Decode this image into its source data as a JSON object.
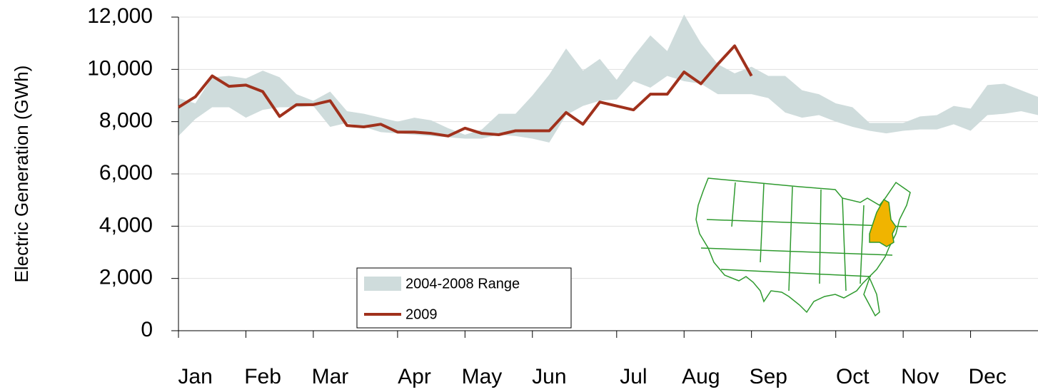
{
  "chart_data": {
    "type": "line",
    "y_label": "Electric Generation (GWh)",
    "categories": [
      null,
      "Jan",
      null,
      null,
      null,
      "Feb",
      null,
      null,
      null,
      "Mar",
      null,
      null,
      null,
      null,
      "Apr",
      null,
      null,
      null,
      "May",
      null,
      null,
      null,
      "Jun",
      null,
      null,
      null,
      null,
      "Jul",
      null,
      null,
      null,
      "Aug",
      null,
      null,
      null,
      "Sep",
      null,
      null,
      null,
      null,
      "Oct",
      null,
      null,
      null,
      "Nov",
      null,
      null,
      null,
      "Dec",
      null,
      null,
      null
    ],
    "series": [
      {
        "name": "2004-2008 Range",
        "color": "#cfdcdc",
        "low": [
          7450,
          8100,
          8550,
          8550,
          8150,
          8450,
          8550,
          8550,
          8600,
          7800,
          7950,
          7800,
          7600,
          7550,
          7500,
          7450,
          7400,
          7350,
          7350,
          7500,
          7450,
          7350,
          7200,
          8250,
          8600,
          8800,
          8850,
          9550,
          9300,
          9750,
          9550,
          9450,
          9050,
          9050,
          9050,
          8900,
          8350,
          8150,
          8250,
          8000,
          7800,
          7650,
          7550,
          7650,
          7700,
          7700,
          7900,
          7650,
          8250,
          8300,
          8400,
          8250
        ],
        "high": [
          8900,
          8700,
          9700,
          9750,
          9650,
          9950,
          9700,
          9050,
          8800,
          9150,
          8400,
          8300,
          8150,
          8000,
          8150,
          8050,
          7750,
          7500,
          7700,
          8300,
          8300,
          9000,
          9800,
          10800,
          9950,
          10400,
          9600,
          10500,
          11300,
          10700,
          12100,
          11000,
          10200,
          9850,
          10100,
          9750,
          9750,
          9200,
          9050,
          8700,
          8550,
          7950,
          7950,
          7950,
          8200,
          8250,
          8600,
          8500,
          9400,
          9450,
          9200,
          8950
        ]
      },
      {
        "name": "2009",
        "color": "#a0311c",
        "values": [
          8550,
          8950,
          9750,
          9350,
          9400,
          9150,
          8200,
          8650,
          8650,
          8800,
          7850,
          7800,
          7900,
          7600,
          7600,
          7550,
          7450,
          7750,
          7550,
          7500,
          7650,
          7650,
          7650,
          8350,
          7900,
          8750,
          8600,
          8450,
          9050,
          9050,
          9900,
          9450,
          10200,
          10900,
          9750,
          null,
          null,
          null,
          null,
          null,
          null,
          null,
          null,
          null,
          null,
          null,
          null,
          null,
          null,
          null,
          null,
          null
        ]
      }
    ],
    "ylim": [
      0,
      12000
    ],
    "yticks": [
      0,
      {
        "value": 2000,
        "label": "2,000"
      },
      {
        "value": 4000,
        "label": "4,000"
      },
      {
        "value": 6000,
        "label": "6,000"
      },
      {
        "value": 8000,
        "label": "8,000"
      },
      {
        "value": 10000,
        "label": "10,000"
      },
      {
        "value": 12000,
        "label": "12,000"
      }
    ],
    "grid": true
  }
}
